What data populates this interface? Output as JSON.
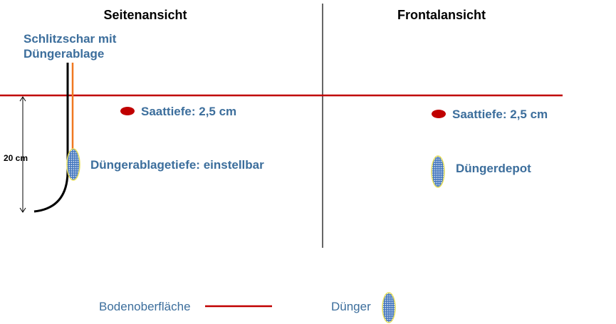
{
  "titles": {
    "side_view": "Seitenansicht",
    "front_view": "Frontalansicht"
  },
  "side_view": {
    "coulter_label_line1": "Schlitzschar mit",
    "coulter_label_line2": "Düngerablage",
    "seed_depth_label": "Saattiefe:  2,5 cm",
    "fertilizer_depth_label": "Düngerablagetiefe: einstellbar",
    "depth_dimension_label": "20 cm"
  },
  "front_view": {
    "seed_depth_label": "Saattiefe:  2,5 cm",
    "fertilizer_depot_label": "Düngerdepot"
  },
  "legend": {
    "soil_surface_label": "Bodenoberfläche",
    "fertilizer_label": "Dünger"
  },
  "colors": {
    "label_blue": "#3c6e9c",
    "soil_line": "#c00000",
    "seed": "#c00000",
    "fertilizer_fill": "#4a7bc0",
    "fertilizer_outline": "#e8e060",
    "fertilizer_tube": "#f07820",
    "coulter": "#000000",
    "divider": "#000000"
  },
  "icons": {
    "seed": "seed-icon",
    "fertilizer": "fertilizer-depot-icon"
  }
}
